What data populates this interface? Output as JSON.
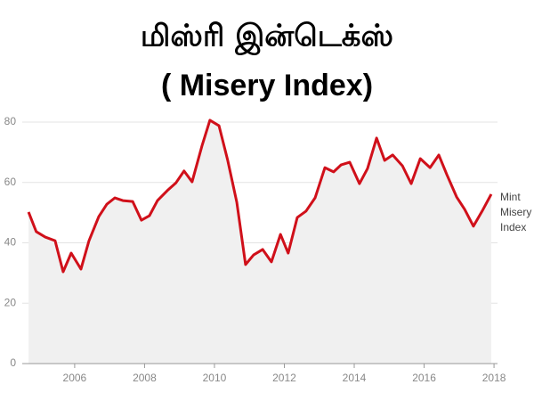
{
  "chart_data": {
    "type": "line",
    "title": "மிஸ்ரி இன்டெக்ஸ்",
    "subtitle": "( Misery Index)",
    "x": [
      2004.68,
      2004.9,
      2005.16,
      2005.44,
      2005.67,
      2005.9,
      2006.18,
      2006.41,
      2006.69,
      2006.92,
      2007.15,
      2007.38,
      2007.66,
      2007.91,
      2008.14,
      2008.37,
      2008.65,
      2008.9,
      2009.13,
      2009.36,
      2009.64,
      2009.87,
      2010.13,
      2010.38,
      2010.64,
      2010.89,
      2011.12,
      2011.38,
      2011.63,
      2011.89,
      2012.11,
      2012.37,
      2012.62,
      2012.88,
      2013.16,
      2013.41,
      2013.62,
      2013.87,
      2014.15,
      2014.38,
      2014.64,
      2014.87,
      2015.1,
      2015.38,
      2015.63,
      2015.89,
      2016.17,
      2016.42,
      2016.65,
      2016.93,
      2017.16,
      2017.41,
      2017.66,
      2017.92
    ],
    "series": [
      {
        "name": "Mint Misery Index",
        "color": "#d0101a",
        "values": [
          50.2,
          43.7,
          41.9,
          40.7,
          30.4,
          36.6,
          31.3,
          40.7,
          48.7,
          52.8,
          54.9,
          54.0,
          53.7,
          47.5,
          49.0,
          54.0,
          57.3,
          59.9,
          63.8,
          60.2,
          72.0,
          80.6,
          78.8,
          67.3,
          53.4,
          32.8,
          36.0,
          37.8,
          33.7,
          42.8,
          36.6,
          48.4,
          50.5,
          54.9,
          64.9,
          63.5,
          65.8,
          66.7,
          59.6,
          64.6,
          74.7,
          67.3,
          69.1,
          65.5,
          59.6,
          67.9,
          64.9,
          69.1,
          62.6,
          55.2,
          51.1,
          45.5,
          50.5,
          56.1
        ]
      }
    ],
    "xlim": [
      2004.5,
      2018.1
    ],
    "xticks": [
      2006,
      2008,
      2010,
      2012,
      2014,
      2016,
      2018
    ],
    "ylim": [
      0,
      80
    ],
    "yticks": [
      0,
      20,
      40,
      60,
      80
    ],
    "grid": true,
    "area_fill": "#f0f0f0"
  }
}
